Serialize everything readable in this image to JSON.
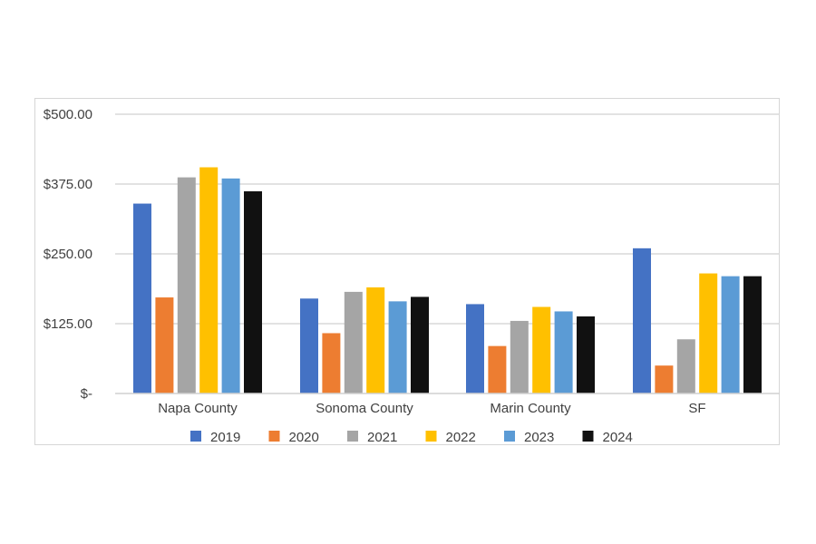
{
  "chart_data": {
    "type": "bar",
    "categories": [
      "Napa County",
      "Sonoma County",
      "Marin County",
      "SF"
    ],
    "y_tick_labels": [
      "$-",
      "$125.00",
      "$250.00",
      "$375.00",
      "$500.00"
    ],
    "y_ticks": [
      0,
      125,
      250,
      375,
      500
    ],
    "ylim": [
      0,
      500
    ],
    "grid": true,
    "legend_position": "bottom",
    "series": [
      {
        "name": "2019",
        "color": "#4472C4",
        "values": [
          340,
          170,
          160,
          260
        ]
      },
      {
        "name": "2020",
        "color": "#ED7D31",
        "values": [
          172,
          108,
          85,
          50
        ]
      },
      {
        "name": "2021",
        "color": "#A5A5A5",
        "values": [
          387,
          182,
          130,
          97
        ]
      },
      {
        "name": "2022",
        "color": "#FFC000",
        "values": [
          405,
          190,
          155,
          215
        ]
      },
      {
        "name": "2023",
        "color": "#5B9BD5",
        "values": [
          385,
          165,
          147,
          210
        ]
      },
      {
        "name": "2024",
        "color": "#111111",
        "values": [
          362,
          173,
          138,
          210
        ]
      }
    ]
  }
}
